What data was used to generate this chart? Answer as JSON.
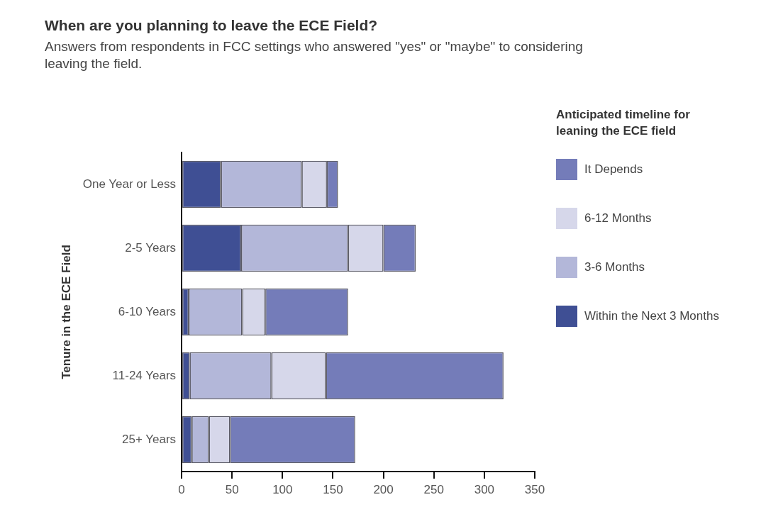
{
  "chart_data": {
    "type": "bar",
    "orientation": "horizontal",
    "stacked": true,
    "title": "When are you planning to leave the ECE Field?",
    "subtitle": "Answers from respondents in FCC settings who answered \"yes\" or \"maybe\" to considering leaving the field.",
    "ylabel": "Tenure in the ECE Field",
    "legend_title": "Anticipated timeline for leaning the ECE field",
    "legend": "right",
    "categories": [
      "One Year or Less",
      "2-5 Years",
      "6-10 Years",
      "11-24 Years",
      "25+ Years"
    ],
    "series": [
      {
        "name": "Within the Next 3 Months",
        "color": "#3f4f94",
        "values": [
          39,
          59,
          7,
          8,
          10
        ]
      },
      {
        "name": "3-6 Months",
        "color": "#b3b7d9",
        "values": [
          80,
          106,
          53,
          81,
          17
        ]
      },
      {
        "name": "6-12 Months",
        "color": "#d6d7ea",
        "values": [
          25,
          35,
          23,
          54,
          21
        ]
      },
      {
        "name": "It Depends",
        "color": "#747cb9",
        "values": [
          11,
          32,
          82,
          176,
          124
        ]
      }
    ],
    "xlim": [
      0,
      350
    ],
    "xticks": [
      0,
      50,
      100,
      150,
      200,
      250,
      300,
      350
    ],
    "grid": false
  }
}
